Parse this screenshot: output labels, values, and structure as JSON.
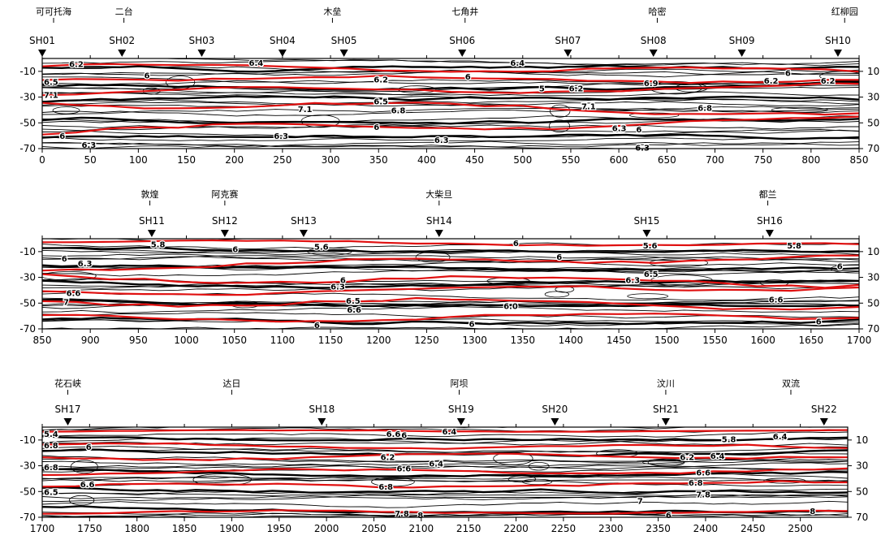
{
  "chart_data": [
    {
      "type": "contour",
      "title": "",
      "xlabel": "",
      "ylabel": "",
      "xlim": [
        0,
        850
      ],
      "ylim": [
        -70,
        0
      ],
      "x_ticks": [
        0,
        50,
        100,
        150,
        200,
        250,
        300,
        350,
        400,
        450,
        500,
        550,
        600,
        650,
        700,
        750,
        800,
        850
      ],
      "y_ticks_left": [
        -10,
        -30,
        -50,
        -70
      ],
      "y_ticks_right": [
        10,
        30,
        50,
        70
      ],
      "grid": false,
      "places": [
        {
          "name": "可可托海",
          "x": 8
        },
        {
          "name": "二台",
          "x": 85
        },
        {
          "name": "木垒",
          "x": 302
        },
        {
          "name": "七角井",
          "x": 440
        },
        {
          "name": "哈密",
          "x": 640
        },
        {
          "name": "红柳园",
          "x": 835
        }
      ],
      "stations": [
        {
          "name": "SH01",
          "x": 0
        },
        {
          "name": "SH02",
          "x": 83
        },
        {
          "name": "SH03",
          "x": 166
        },
        {
          "name": "SH04",
          "x": 250
        },
        {
          "name": "SH05",
          "x": 314
        },
        {
          "name": "SH06",
          "x": 437
        },
        {
          "name": "SH07",
          "x": 547
        },
        {
          "name": "SH08",
          "x": 636
        },
        {
          "name": "SH09",
          "x": 728
        },
        {
          "name": "SH10",
          "x": 828
        }
      ],
      "contour_labels": [
        {
          "text": "6.2",
          "x": 28,
          "y": -4
        },
        {
          "text": "6.5",
          "x": -5,
          "y": -18
        },
        {
          "text": "7.1",
          "x": -2,
          "y": -28
        },
        {
          "text": "6",
          "x": 106,
          "y": -13
        },
        {
          "text": "6.4",
          "x": 215,
          "y": -3
        },
        {
          "text": "6.2",
          "x": 345,
          "y": -16
        },
        {
          "text": "6",
          "x": 440,
          "y": -14
        },
        {
          "text": "6.5",
          "x": 345,
          "y": -33
        },
        {
          "text": "6.8",
          "x": 363,
          "y": -40
        },
        {
          "text": "7.1",
          "x": 266,
          "y": -39
        },
        {
          "text": "6",
          "x": 345,
          "y": -53
        },
        {
          "text": "6.3",
          "x": 241,
          "y": -60
        },
        {
          "text": "6.3",
          "x": 408,
          "y": -63
        },
        {
          "text": "6",
          "x": 18,
          "y": -60
        },
        {
          "text": "6.3",
          "x": 41,
          "y": -67
        },
        {
          "text": "6.4",
          "x": 487,
          "y": -3
        },
        {
          "text": "5",
          "x": 517,
          "y": -23
        },
        {
          "text": "6.2",
          "x": 548,
          "y": -23
        },
        {
          "text": "7.1",
          "x": 561,
          "y": -37
        },
        {
          "text": "6.3",
          "x": 593,
          "y": -54
        },
        {
          "text": "6.3",
          "x": 617,
          "y": -69
        },
        {
          "text": "6",
          "x": 618,
          "y": -55
        },
        {
          "text": "6.9",
          "x": 626,
          "y": -19
        },
        {
          "text": "6.8",
          "x": 682,
          "y": -38
        },
        {
          "text": "6.2",
          "x": 751,
          "y": -17
        },
        {
          "text": "6",
          "x": 773,
          "y": -11
        },
        {
          "text": "6.2",
          "x": 810,
          "y": -17
        }
      ]
    },
    {
      "type": "contour",
      "title": "",
      "xlabel": "",
      "ylabel": "",
      "xlim": [
        850,
        1700
      ],
      "ylim": [
        -70,
        0
      ],
      "x_ticks": [
        850,
        900,
        950,
        1000,
        1050,
        1100,
        1150,
        1200,
        1250,
        1300,
        1350,
        1400,
        1450,
        1500,
        1550,
        1600,
        1650,
        1700
      ],
      "y_ticks_left": [
        -10,
        -30,
        -50,
        -70
      ],
      "y_ticks_right": [
        10,
        30,
        50,
        70
      ],
      "grid": false,
      "places": [
        {
          "name": "敦煌",
          "x": 962
        },
        {
          "name": "阿克赛",
          "x": 1040
        },
        {
          "name": "大柴旦",
          "x": 1263
        },
        {
          "name": "都兰",
          "x": 1605
        }
      ],
      "stations": [
        {
          "name": "SH11",
          "x": 964
        },
        {
          "name": "SH12",
          "x": 1040
        },
        {
          "name": "SH13",
          "x": 1122
        },
        {
          "name": "SH14",
          "x": 1263
        },
        {
          "name": "SH15",
          "x": 1479
        },
        {
          "name": "SH16",
          "x": 1607
        }
      ],
      "contour_labels": [
        {
          "text": "5.8",
          "x": 963,
          "y": -4
        },
        {
          "text": "6",
          "x": 1048,
          "y": -8
        },
        {
          "text": "5.6",
          "x": 1133,
          "y": -6
        },
        {
          "text": "6",
          "x": 1340,
          "y": -3
        },
        {
          "text": "5.6",
          "x": 1475,
          "y": -5
        },
        {
          "text": "5.8",
          "x": 1625,
          "y": -5
        },
        {
          "text": "6",
          "x": 870,
          "y": -15
        },
        {
          "text": "6.3",
          "x": 887,
          "y": -19
        },
        {
          "text": "6",
          "x": 1385,
          "y": -14
        },
        {
          "text": "6",
          "x": 1160,
          "y": -32
        },
        {
          "text": "6.3",
          "x": 1150,
          "y": -37
        },
        {
          "text": "6.3",
          "x": 1457,
          "y": -32
        },
        {
          "text": "6.5",
          "x": 1476,
          "y": -27
        },
        {
          "text": "6",
          "x": 1677,
          "y": -21
        },
        {
          "text": "6.6",
          "x": 875,
          "y": -42
        },
        {
          "text": "6.5",
          "x": 1166,
          "y": -48
        },
        {
          "text": "6.6",
          "x": 1167,
          "y": -55
        },
        {
          "text": "6.0",
          "x": 1330,
          "y": -52
        },
        {
          "text": "6.6",
          "x": 1606,
          "y": -47
        },
        {
          "text": "7",
          "x": 872,
          "y": -49
        },
        {
          "text": "6",
          "x": 1133,
          "y": -67
        },
        {
          "text": "6",
          "x": 1294,
          "y": -66
        },
        {
          "text": "6",
          "x": 1655,
          "y": -64
        }
      ]
    },
    {
      "type": "contour",
      "title": "",
      "xlabel": "",
      "ylabel": "",
      "xlim": [
        1700,
        2550
      ],
      "ylim": [
        -70,
        0
      ],
      "x_ticks": [
        1700,
        1750,
        1800,
        1850,
        1900,
        1950,
        2000,
        2050,
        2100,
        2150,
        2200,
        2250,
        2300,
        2350,
        2400,
        2450,
        2500
      ],
      "y_ticks_left": [
        -10,
        -30,
        -50,
        -70
      ],
      "y_ticks_right": [
        10,
        30,
        50,
        70
      ],
      "grid": false,
      "places": [
        {
          "name": "花石峡",
          "x": 1727
        },
        {
          "name": "达日",
          "x": 1900
        },
        {
          "name": "阿坝",
          "x": 2140
        },
        {
          "name": "汶川",
          "x": 2358
        },
        {
          "name": "双流",
          "x": 2490
        }
      ],
      "stations": [
        {
          "name": "SH17",
          "x": 1727
        },
        {
          "name": "SH18",
          "x": 1995
        },
        {
          "name": "SH19",
          "x": 2142
        },
        {
          "name": "SH20",
          "x": 2241
        },
        {
          "name": "SH21",
          "x": 2358
        },
        {
          "name": "SH22",
          "x": 2525
        }
      ],
      "contour_labels": [
        {
          "text": "5.4",
          "x": 1698,
          "y": -5
        },
        {
          "text": "6.8",
          "x": 1700,
          "y": -14
        },
        {
          "text": "6",
          "x": 1746,
          "y": -15
        },
        {
          "text": "6.8",
          "x": 1700,
          "y": -31
        },
        {
          "text": "6.5",
          "x": 1700,
          "y": -50
        },
        {
          "text": "6.6",
          "x": 1740,
          "y": -44
        },
        {
          "text": "6.6",
          "x": 2063,
          "y": -5
        },
        {
          "text": "6",
          "x": 2079,
          "y": -6
        },
        {
          "text": "6.4",
          "x": 2122,
          "y": -3
        },
        {
          "text": "6.2",
          "x": 2057,
          "y": -23
        },
        {
          "text": "6.4",
          "x": 2108,
          "y": -28
        },
        {
          "text": "6.6",
          "x": 2074,
          "y": -32
        },
        {
          "text": "6.8",
          "x": 2055,
          "y": -46
        },
        {
          "text": "7.8",
          "x": 2072,
          "y": -67
        },
        {
          "text": "8",
          "x": 2096,
          "y": -68
        },
        {
          "text": "5.8",
          "x": 2417,
          "y": -9
        },
        {
          "text": "6.4",
          "x": 2471,
          "y": -7
        },
        {
          "text": "6.2",
          "x": 2373,
          "y": -23
        },
        {
          "text": "6.4",
          "x": 2405,
          "y": -22
        },
        {
          "text": "6.6",
          "x": 2390,
          "y": -35
        },
        {
          "text": "6.8",
          "x": 2382,
          "y": -43
        },
        {
          "text": "7.8",
          "x": 2390,
          "y": -52
        },
        {
          "text": "7",
          "x": 2328,
          "y": -57
        },
        {
          "text": "6",
          "x": 2358,
          "y": -68
        },
        {
          "text": "8",
          "x": 2510,
          "y": -65
        }
      ]
    }
  ],
  "colors": {
    "contour_line": "#000000",
    "highlight_line": "#e01010",
    "background": "#ffffff"
  }
}
